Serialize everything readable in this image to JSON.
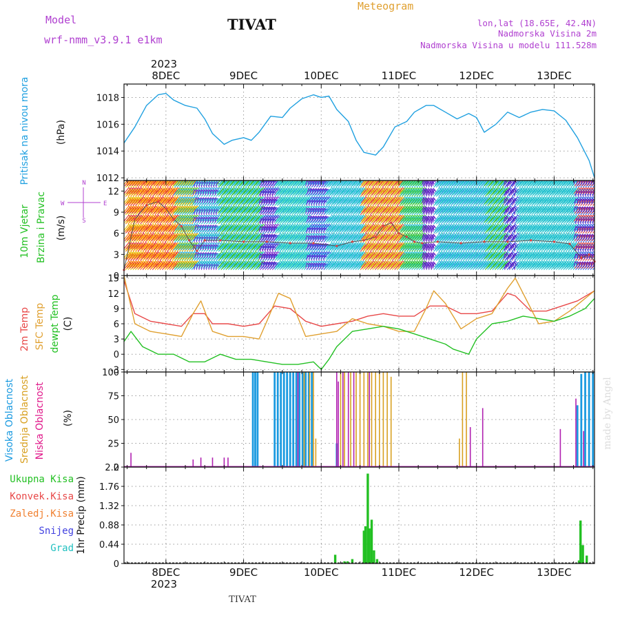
{
  "header": {
    "model_label": "Model",
    "model_name": "wrf-nmm_v3.9.1  e1km",
    "station": "TIVAT",
    "meteogram": "Meteogram",
    "lonlat": "lon,lat (18.65E, 42.4N)",
    "elevation": "Nadmorska Visina 2m",
    "model_elevation": "Nadmorska Visina u modelu 111.528m",
    "year_top": "2023",
    "year_bottom": "2023",
    "footer_station": "TIVAT",
    "watermark": "made by Angel"
  },
  "colors": {
    "pressure": "#1fa0e0",
    "t2m": "#e84848",
    "sfc": "#e0a030",
    "dewpt": "#22c022",
    "high_cloud": "#1a9ae0",
    "mid_cloud": "#d8a020",
    "low_cloud": "#b020b0",
    "precip": "#22c022",
    "purple_text": "#b040d0"
  },
  "chart_data": [
    {
      "type": "line",
      "panel": "pressure",
      "ylabel": [
        "Pritisak na nivou mora",
        "(hPa)"
      ],
      "ylim": [
        1011.8,
        1019.0
      ],
      "yticks": [
        1012,
        1014,
        1016,
        1018
      ],
      "x_labels": [
        "8DEC",
        "9DEC",
        "10DEC",
        "11DEC",
        "12DEC",
        "13DEC"
      ],
      "series": [
        {
          "x": [
            7.46,
            7.6,
            7.75,
            7.9,
            8.0,
            8.1,
            8.25,
            8.4,
            8.5,
            8.6,
            8.75,
            8.85,
            9.0,
            9.1,
            9.2,
            9.35,
            9.5,
            9.6,
            9.75,
            9.9,
            10.0,
            10.1,
            10.2,
            10.35,
            10.45,
            10.55,
            10.7,
            10.8,
            10.95,
            11.1,
            11.2,
            11.35,
            11.45,
            11.6,
            11.75,
            11.9,
            12.0,
            12.1,
            12.25,
            12.4,
            12.55,
            12.7,
            12.85,
            13.0,
            13.15,
            13.3,
            13.45,
            13.52
          ],
          "values": [
            1014.6,
            1015.8,
            1017.4,
            1018.2,
            1018.3,
            1017.8,
            1017.4,
            1017.2,
            1016.4,
            1015.3,
            1014.5,
            1014.8,
            1015.0,
            1014.8,
            1015.4,
            1016.6,
            1016.5,
            1017.2,
            1017.9,
            1018.2,
            1018.0,
            1018.1,
            1017.1,
            1016.2,
            1014.8,
            1013.9,
            1013.7,
            1014.3,
            1015.8,
            1016.2,
            1016.9,
            1017.4,
            1017.4,
            1016.9,
            1016.4,
            1016.8,
            1016.5,
            1015.4,
            1016.0,
            1016.9,
            1016.5,
            1016.9,
            1017.1,
            1017.0,
            1016.3,
            1015.0,
            1013.3,
            1012.0
          ]
        }
      ]
    },
    {
      "type": "line",
      "panel": "wind",
      "ylabel": [
        "10m Vjetar",
        "Brzina i Pravac",
        "(m/s)"
      ],
      "compass": [
        "N",
        "W",
        "E",
        "S"
      ],
      "ylim": [
        0,
        13.5
      ],
      "yticks": [
        0,
        3,
        6,
        9,
        12
      ],
      "series": [
        {
          "name": "wind speed",
          "x": [
            7.46,
            7.6,
            7.75,
            7.9,
            8.0,
            8.1,
            8.2,
            8.3,
            8.4,
            8.5,
            8.7,
            9.0,
            9.3,
            9.6,
            9.9,
            10.2,
            10.4,
            10.55,
            10.7,
            10.8,
            10.9,
            11.0,
            11.1,
            11.2,
            11.3,
            11.5,
            11.8,
            12.1,
            12.4,
            12.7,
            13.0,
            13.2,
            13.35,
            13.45,
            13.52
          ],
          "values": [
            0.8,
            8.0,
            10.0,
            10.5,
            9.5,
            8.0,
            7.0,
            5.0,
            3.5,
            5.0,
            5.0,
            4.8,
            4.8,
            4.6,
            4.6,
            4.2,
            4.8,
            5.0,
            5.5,
            7.0,
            7.5,
            6.0,
            5.5,
            4.8,
            4.6,
            4.8,
            4.6,
            4.8,
            4.8,
            5.0,
            4.8,
            4.5,
            2.5,
            3.0,
            2.0
          ]
        }
      ]
    },
    {
      "type": "line",
      "panel": "temperature",
      "ylabel": [
        "2m Temp",
        "SFC Temp",
        "dewpt Temp",
        "(C)"
      ],
      "ylim": [
        -3.5,
        15.5
      ],
      "yticks": [
        -3,
        0,
        3,
        6,
        9,
        12,
        15
      ],
      "series": [
        {
          "name": "2m Temp",
          "x": [
            7.46,
            7.6,
            7.8,
            8.0,
            8.2,
            8.35,
            8.5,
            8.6,
            8.8,
            9.0,
            9.2,
            9.4,
            9.6,
            9.8,
            10.0,
            10.2,
            10.4,
            10.6,
            10.8,
            11.0,
            11.2,
            11.4,
            11.6,
            11.8,
            12.0,
            12.2,
            12.4,
            12.5,
            12.7,
            12.9,
            13.1,
            13.3,
            13.52
          ],
          "values": [
            14.5,
            8.0,
            6.5,
            6.0,
            5.5,
            8.0,
            8.0,
            6.0,
            6.0,
            5.5,
            6.0,
            9.5,
            9.0,
            6.5,
            5.5,
            6.0,
            6.5,
            7.5,
            8.0,
            7.5,
            7.5,
            9.5,
            9.5,
            8.0,
            8.0,
            8.5,
            12.0,
            11.5,
            8.5,
            8.5,
            9.5,
            10.5,
            12.5
          ]
        },
        {
          "name": "SFC Temp",
          "x": [
            7.46,
            7.6,
            7.8,
            8.0,
            8.2,
            8.35,
            8.45,
            8.6,
            8.8,
            9.0,
            9.2,
            9.3,
            9.45,
            9.6,
            9.8,
            10.0,
            10.2,
            10.4,
            10.6,
            10.8,
            11.0,
            11.2,
            11.35,
            11.45,
            11.6,
            11.8,
            12.0,
            12.2,
            12.4,
            12.5,
            12.6,
            12.8,
            13.0,
            13.2,
            13.52
          ],
          "values": [
            15.5,
            6.0,
            4.5,
            4.0,
            3.5,
            8.0,
            10.5,
            4.5,
            3.5,
            3.5,
            3.0,
            6.5,
            12.0,
            11.0,
            3.5,
            4.0,
            4.5,
            7.0,
            6.0,
            5.5,
            4.5,
            4.5,
            9.0,
            12.5,
            10.0,
            5.0,
            7.0,
            8.0,
            13.0,
            15.0,
            12.0,
            6.0,
            6.5,
            8.5,
            12.5
          ]
        },
        {
          "name": "dewpt Temp",
          "x": [
            7.46,
            7.55,
            7.7,
            7.9,
            8.1,
            8.3,
            8.5,
            8.7,
            8.9,
            9.1,
            9.3,
            9.5,
            9.7,
            9.9,
            10.0,
            10.1,
            10.2,
            10.4,
            10.6,
            10.8,
            11.0,
            11.2,
            11.4,
            11.6,
            11.7,
            11.9,
            12.0,
            12.2,
            12.4,
            12.6,
            12.8,
            13.0,
            13.2,
            13.4,
            13.52
          ],
          "values": [
            2.5,
            4.5,
            1.5,
            0.0,
            0.0,
            -1.5,
            -1.5,
            0.0,
            -1.0,
            -1.0,
            -1.5,
            -2.0,
            -2.0,
            -1.5,
            -3.0,
            -1.0,
            1.5,
            4.5,
            5.0,
            5.5,
            5.0,
            4.0,
            3.0,
            2.0,
            1.0,
            0.0,
            3.0,
            6.0,
            6.5,
            7.5,
            7.0,
            6.5,
            7.5,
            9.0,
            11.0
          ]
        }
      ]
    },
    {
      "type": "bar",
      "panel": "cloud",
      "ylabel": [
        "Visoka Oblacnost",
        "Srednja Oblacnost",
        "Niska Oblacnost",
        "(%)"
      ],
      "ylim": [
        0,
        100
      ],
      "yticks": [
        0,
        25,
        50,
        75,
        100
      ],
      "series": [
        {
          "name": "Visoka Oblacnost",
          "x": [
            9.12,
            9.15,
            9.18,
            9.4,
            9.44,
            9.48,
            9.52,
            9.56,
            9.6,
            9.64,
            9.68,
            9.72,
            9.76,
            9.8,
            9.84,
            9.88,
            10.2,
            13.3,
            13.35,
            13.4,
            13.45,
            13.5
          ],
          "values": [
            100,
            100,
            100,
            100,
            100,
            100,
            100,
            100,
            100,
            100,
            100,
            100,
            100,
            100,
            100,
            100,
            25,
            65,
            98,
            100,
            100,
            100
          ]
        },
        {
          "name": "Srednja Oblacnost",
          "x": [
            9.78,
            9.85,
            9.9,
            9.93,
            10.25,
            10.3,
            10.38,
            10.45,
            10.5,
            10.55,
            10.6,
            10.65,
            10.7,
            10.75,
            10.8,
            10.85,
            10.9,
            11.78,
            11.82,
            11.87
          ],
          "values": [
            100,
            100,
            100,
            30,
            100,
            100,
            100,
            100,
            100,
            100,
            100,
            100,
            100,
            100,
            100,
            100,
            95,
            30,
            100,
            100
          ]
        },
        {
          "name": "Niska Oblacnost",
          "x": [
            7.55,
            8.35,
            8.45,
            8.6,
            8.75,
            8.8,
            9.7,
            10.2,
            10.22,
            10.28,
            10.35,
            10.42,
            10.62,
            11.92,
            12.08,
            13.08,
            13.28,
            13.38
          ],
          "values": [
            15,
            8,
            10,
            10,
            10,
            10,
            100,
            100,
            90,
            100,
            100,
            100,
            100,
            42,
            62,
            40,
            72,
            38
          ]
        }
      ]
    },
    {
      "type": "bar",
      "panel": "precip",
      "ylabel": [
        "1hr Precip (mm)"
      ],
      "legend": [
        "Ukupna Kisa",
        "Konvek.Kisa",
        "Zaledj.Kisa",
        "Snijeg",
        "Grad"
      ],
      "ylim": [
        0,
        2.2
      ],
      "yticks": [
        "0",
        "0.44",
        "0.88",
        "1.32",
        "1.76",
        "2.2"
      ],
      "series": [
        {
          "name": "Ukupna Kisa",
          "x": [
            10.18,
            10.3,
            10.34,
            10.4,
            10.55,
            10.57,
            10.6,
            10.62,
            10.65,
            10.68,
            10.72,
            13.32,
            13.34,
            13.37,
            13.42
          ],
          "values": [
            0.2,
            0.05,
            0.05,
            0.1,
            0.75,
            0.85,
            2.05,
            0.8,
            1.0,
            0.3,
            0.1,
            0.07,
            0.98,
            0.42,
            0.18
          ]
        }
      ]
    }
  ]
}
